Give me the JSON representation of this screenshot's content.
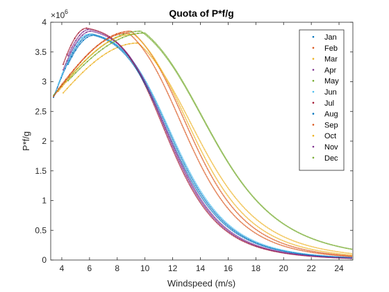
{
  "chart_data": {
    "type": "scatter",
    "title": "Quota of P*f/g",
    "xlabel": "Windspeed (m/s)",
    "ylabel": "P*f/g",
    "exponent_label": "×10",
    "exponent_value": "6",
    "xlim": [
      3.2,
      25
    ],
    "ylim": [
      0,
      4
    ],
    "xticks": [
      "4",
      "6",
      "8",
      "10",
      "12",
      "14",
      "16",
      "18",
      "20",
      "22",
      "24"
    ],
    "yticks": [
      "0",
      "0.5",
      "1",
      "1.5",
      "2",
      "2.5",
      "3",
      "3.5",
      "4"
    ],
    "legend_position": "top-right",
    "series": [
      {
        "name": "Jan",
        "color": "#0072BD",
        "peak_x": 6.2,
        "peak_y": 3.8,
        "x_half": 12.2,
        "k": 3.2
      },
      {
        "name": "Feb",
        "color": "#D95319",
        "peak_x": 9.0,
        "peak_y": 3.85,
        "x_half": 13.4,
        "k": 3.3
      },
      {
        "name": "Mar",
        "color": "#EDB120",
        "peak_x": 9.5,
        "peak_y": 3.65,
        "x_half": 14.0,
        "k": 3.1
      },
      {
        "name": "Apr",
        "color": "#7E2F8E",
        "peak_x": 6.0,
        "peak_y": 3.88,
        "x_half": 11.9,
        "k": 3.3
      },
      {
        "name": "May",
        "color": "#77AC30",
        "peak_x": 9.7,
        "peak_y": 3.85,
        "x_half": 14.9,
        "k": 3.0
      },
      {
        "name": "Jun",
        "color": "#4DBEEE",
        "peak_x": 6.0,
        "peak_y": 3.8,
        "x_half": 12.3,
        "k": 3.2
      },
      {
        "name": "Jul",
        "color": "#A2142F",
        "peak_x": 5.8,
        "peak_y": 3.9,
        "x_half": 11.8,
        "k": 3.3
      },
      {
        "name": "Aug",
        "color": "#0072BD",
        "peak_x": 6.3,
        "peak_y": 3.78,
        "x_half": 12.1,
        "k": 3.2
      },
      {
        "name": "Sep",
        "color": "#D95319",
        "peak_x": 8.8,
        "peak_y": 3.82,
        "x_half": 13.1,
        "k": 3.3
      },
      {
        "name": "Oct",
        "color": "#EDB120",
        "peak_x": 9.2,
        "peak_y": 3.8,
        "x_half": 13.6,
        "k": 3.2
      },
      {
        "name": "Nov",
        "color": "#7E2F8E",
        "peak_x": 6.1,
        "peak_y": 3.85,
        "x_half": 12.0,
        "k": 3.3
      },
      {
        "name": "Dec",
        "color": "#77AC30",
        "peak_x": 10.0,
        "peak_y": 3.82,
        "x_half": 14.9,
        "k": 3.0
      }
    ]
  }
}
